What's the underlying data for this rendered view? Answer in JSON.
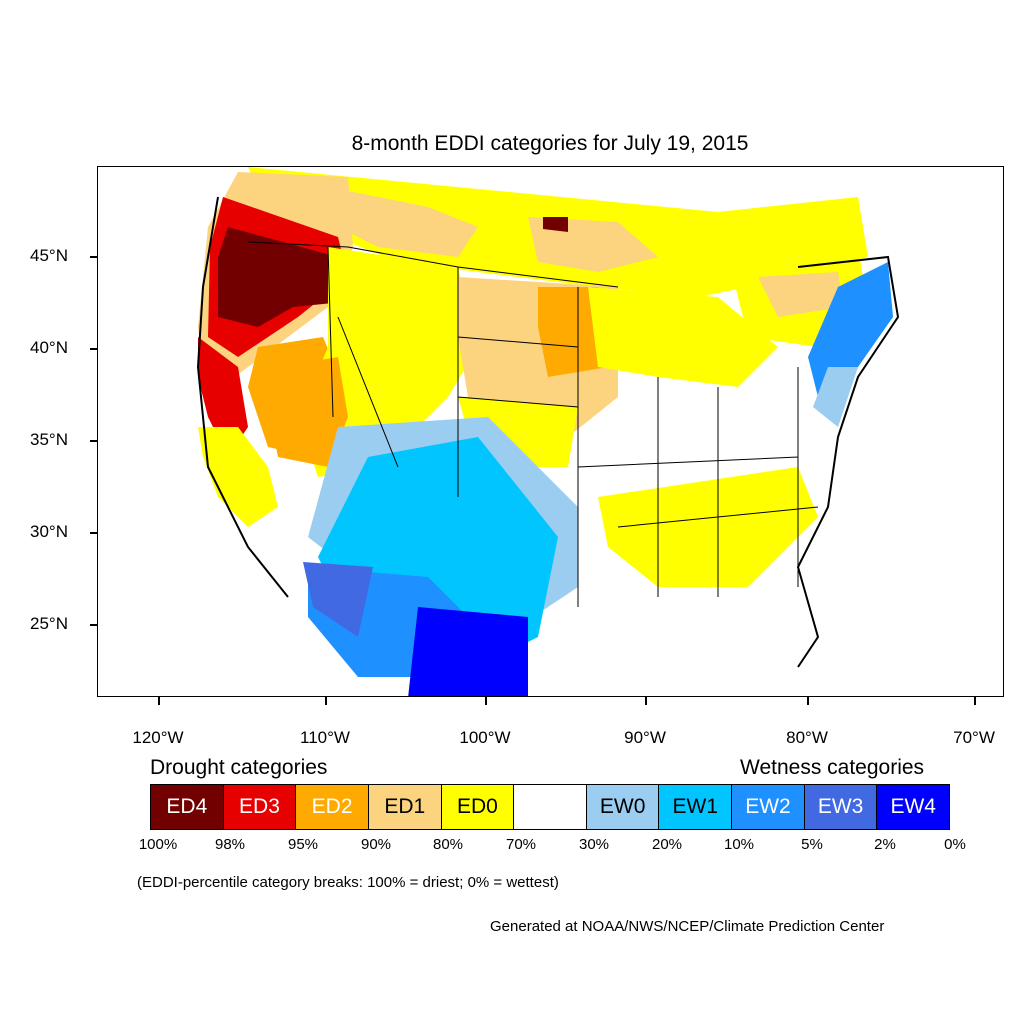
{
  "title": "8-month EDDI categories for July 19, 2015",
  "lat_labels": [
    "45°N",
    "40°N",
    "35°N",
    "30°N",
    "25°N"
  ],
  "lon_labels": [
    "120°W",
    "110°W",
    "100°W",
    "90°W",
    "80°W",
    "70°W"
  ],
  "drought_heading": "Drought categories",
  "wetness_heading": "Wetness categories",
  "legend": [
    {
      "label": "ED4",
      "color": "#730000",
      "text_color": "#ffffff"
    },
    {
      "label": "ED3",
      "color": "#e60000",
      "text_color": "#ffffff"
    },
    {
      "label": "ED2",
      "color": "#ffaa00",
      "text_color": "#ffffff"
    },
    {
      "label": "ED1",
      "color": "#fcd37f",
      "text_color": "#000000"
    },
    {
      "label": "ED0",
      "color": "#ffff00",
      "text_color": "#000000"
    },
    {
      "label": "",
      "color": "#ffffff",
      "text_color": "#000000"
    },
    {
      "label": "EW0",
      "color": "#9bcdf0",
      "text_color": "#000000"
    },
    {
      "label": "EW1",
      "color": "#00c5ff",
      "text_color": "#000000"
    },
    {
      "label": "EW2",
      "color": "#1e90ff",
      "text_color": "#ffffff"
    },
    {
      "label": "EW3",
      "color": "#4169e1",
      "text_color": "#ffffff"
    },
    {
      "label": "EW4",
      "color": "#0000ff",
      "text_color": "#ffffff"
    }
  ],
  "percent_breaks": [
    "100%",
    "98%",
    "95%",
    "90%",
    "80%",
    "70%",
    "30%",
    "20%",
    "10%",
    "5%",
    "2%",
    "0%"
  ],
  "note": "(EDDI-percentile category breaks: 100% = driest; 0% = wettest)",
  "credit": "Generated at NOAA/NWS/NCEP/Climate Prediction Center"
}
